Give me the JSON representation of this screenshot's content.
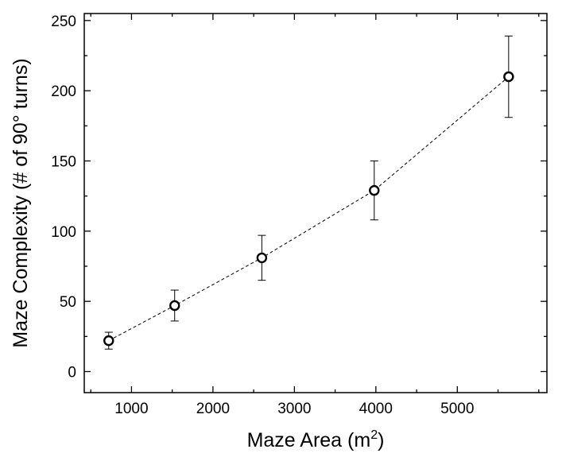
{
  "chart_data": {
    "type": "scatter",
    "title": "",
    "xlabel": "Maze Area (m",
    "xlabel_superscript": "2",
    "xlabel_suffix": ")",
    "ylabel": "Maze Complexity (# of 90° turns)",
    "xlim": [
      420,
      6100
    ],
    "ylim": [
      -15,
      255
    ],
    "x_ticks": [
      1000,
      2000,
      3000,
      4000,
      5000
    ],
    "x_tick_labels": [
      "1000",
      "2000",
      "3000",
      "4000",
      "5000"
    ],
    "y_ticks": [
      0,
      50,
      100,
      150,
      200,
      250
    ],
    "y_tick_labels": [
      "0",
      "50",
      "100",
      "150",
      "200",
      "250"
    ],
    "grid": false,
    "series": [
      {
        "marker": "open-circle",
        "line": "dashed",
        "points": [
          {
            "x": 720,
            "y": 22,
            "y_err_low": 16,
            "y_err_high": 28
          },
          {
            "x": 1530,
            "y": 47,
            "y_err_low": 36,
            "y_err_high": 58
          },
          {
            "x": 2600,
            "y": 81,
            "y_err_low": 65,
            "y_err_high": 97
          },
          {
            "x": 3980,
            "y": 129,
            "y_err_low": 108,
            "y_err_high": 150
          },
          {
            "x": 5630,
            "y": 210,
            "y_err_low": 181,
            "y_err_high": 239
          }
        ]
      }
    ]
  }
}
